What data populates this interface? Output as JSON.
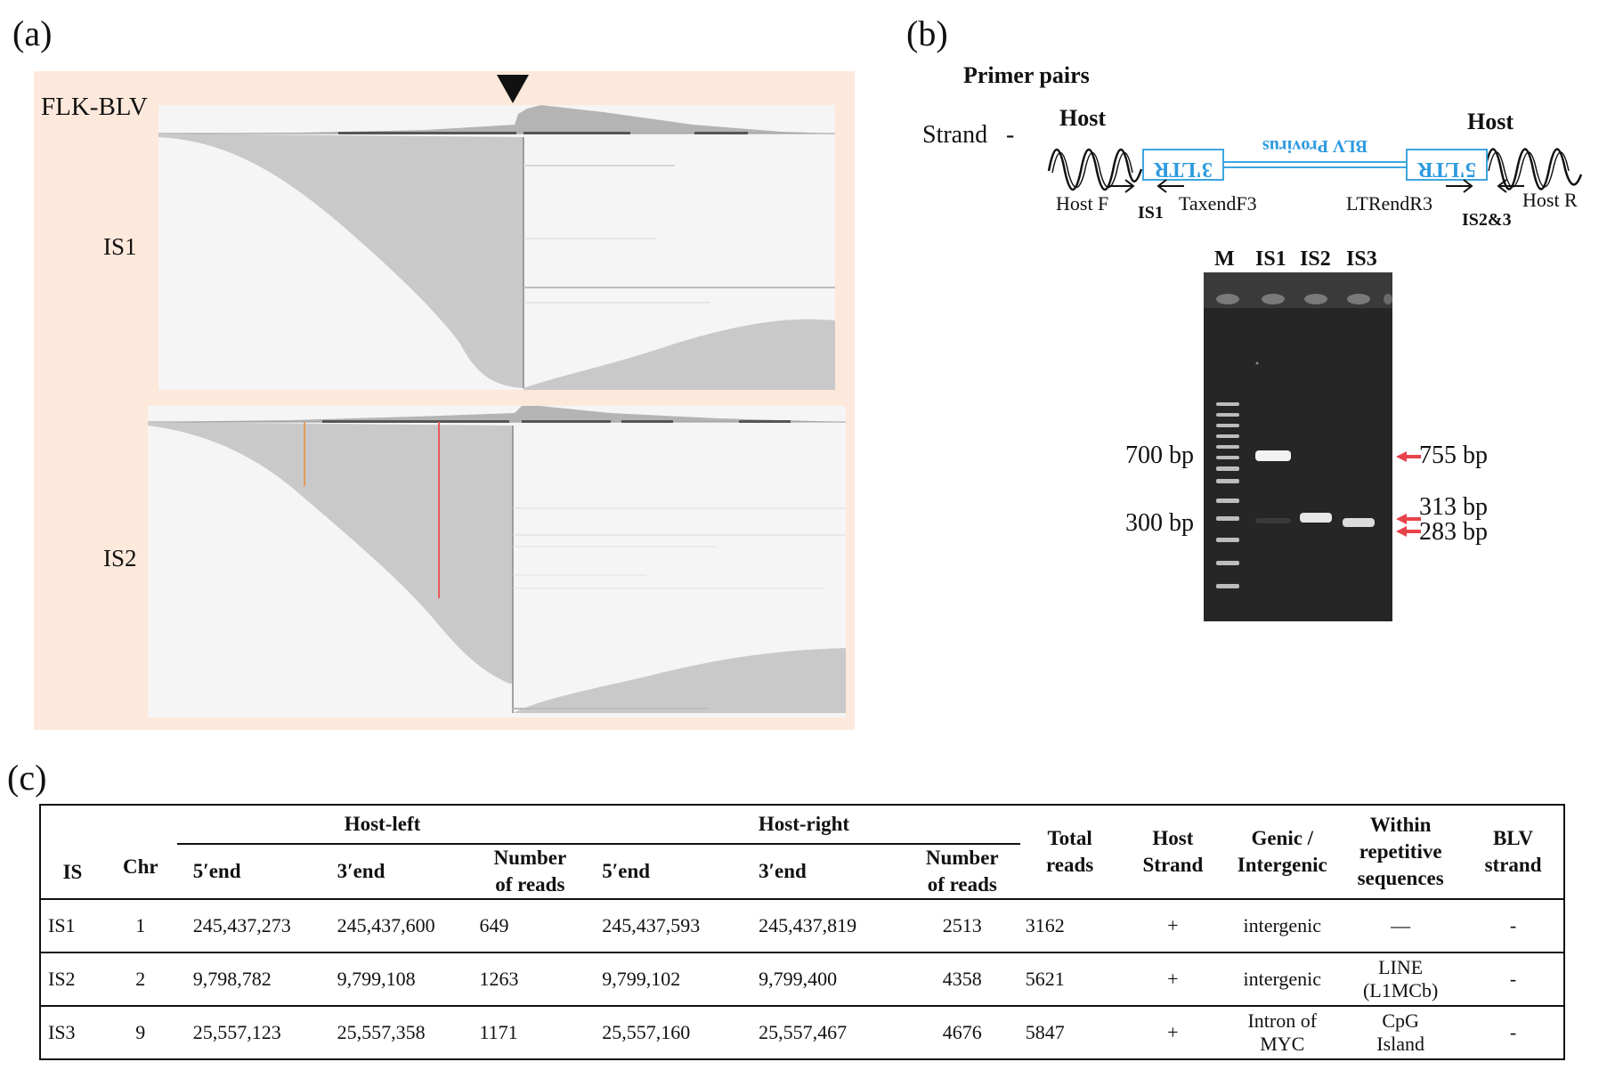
{
  "panel_a": {
    "label": "(a)",
    "reference_label": "FLK-BLV",
    "tracks": [
      {
        "label": "IS1"
      },
      {
        "label": "IS2"
      }
    ]
  },
  "panel_b": {
    "label": "(b)",
    "title": "Primer pairs",
    "strand_label": "Strand",
    "strand_sign": "-",
    "host_left": "Host",
    "host_right": "Host",
    "ltr_left": "3'LTR",
    "ltr_right": "5'LTR",
    "provirus": "BLV Provirus",
    "primers": {
      "host_f": "Host F",
      "taxend": "TaxendF3",
      "ltrend": "LTRendR3",
      "host_r": "Host R"
    },
    "primer_groups": {
      "is1": "IS1",
      "is23": "IS2&3"
    },
    "gel": {
      "lanes": [
        "M",
        "IS1",
        "IS2",
        "IS3"
      ],
      "marker_labels": [
        "700 bp",
        "300 bp"
      ],
      "product_labels": [
        "755 bp",
        "313 bp",
        "283 bp"
      ],
      "arrow_color": "#e8424b"
    }
  },
  "panel_c": {
    "label": "(c)",
    "header": {
      "is": "IS",
      "chr": "Chr",
      "host_left": "Host-left",
      "host_right": "Host-right",
      "five_end": "5′end",
      "three_end": "3′end",
      "num_reads_1": "Number",
      "num_reads_2": "of reads",
      "total_1": "Total",
      "total_2": "reads",
      "strand_1": "Host",
      "strand_2": "Strand",
      "genic_1": "Genic /",
      "genic_2": "Intergenic",
      "rep_1": "Within",
      "rep_2": "repetitive",
      "rep_3": "sequences",
      "blv_1": "BLV",
      "blv_2": "strand"
    },
    "rows": [
      {
        "is": "IS1",
        "chr": "1",
        "hl5": "245,437,273",
        "hl3": "245,437,600",
        "hln": "649",
        "hr5": "245,437,593",
        "hr3": "245,437,819",
        "hrn": "2513",
        "total": "3162",
        "strand": "+",
        "genic_1": "intergenic",
        "genic_2": "",
        "rep_1": "—",
        "rep_2": "",
        "blv": "-"
      },
      {
        "is": "IS2",
        "chr": "2",
        "hl5": "9,798,782",
        "hl3": "9,799,108",
        "hln": "1263",
        "hr5": "9,799,102",
        "hr3": "9,799,400",
        "hrn": "4358",
        "total": "5621",
        "strand": "+",
        "genic_1": "intergenic",
        "genic_2": "",
        "rep_1": "LINE",
        "rep_2": "(L1MCb)",
        "blv": "-"
      },
      {
        "is": "IS3",
        "chr": "9",
        "hl5": "25,557,123",
        "hl3": "25,557,358",
        "hln": "1171",
        "hr5": "25,557,160",
        "hr3": "25,557,467",
        "hrn": "4676",
        "total": "5847",
        "strand": "+",
        "genic_1": "Intron of",
        "genic_2": "MYC",
        "rep_1": "CpG",
        "rep_2": "Island",
        "blv": "-"
      }
    ]
  }
}
